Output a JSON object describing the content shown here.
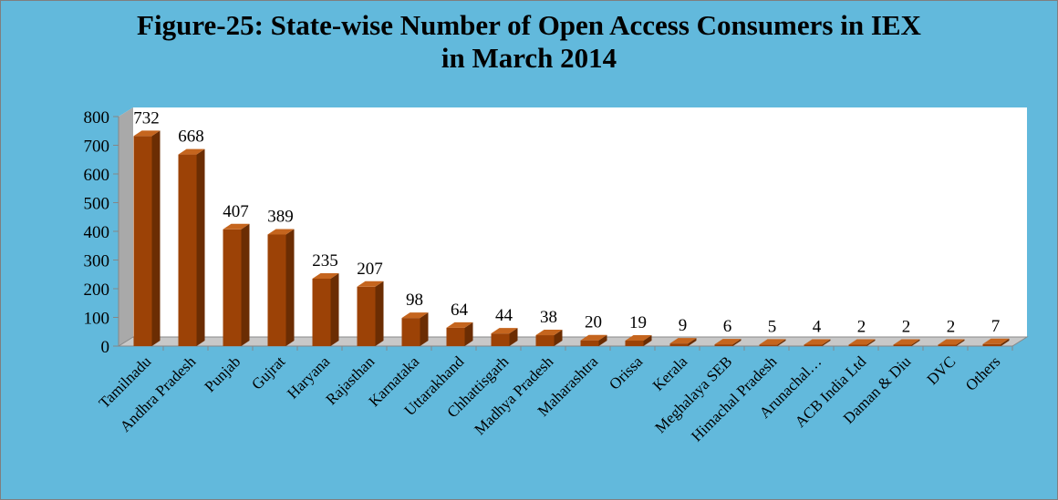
{
  "chart_data": {
    "type": "bar",
    "title_line1": "Figure-25: State-wise Number of Open Access Consumers in IEX",
    "title_line2": "in March 2014",
    "xlabel": "",
    "ylabel": "",
    "ylim": [
      0,
      800
    ],
    "yticks": [
      0,
      100,
      200,
      300,
      400,
      500,
      600,
      700,
      800
    ],
    "categories": [
      "Tamilnadu",
      "Andhra Pradesh",
      "Punjab",
      "Gujrat",
      "Haryana",
      "Rajasthan",
      "Karnataka",
      "Uttarakhand",
      "Chhattisgarh",
      "Madhya Pradesh",
      "Maharashtra",
      "Orissa",
      "Kerala",
      "Meghalaya SEB",
      "Himachal Pradesh",
      "Arunachal…",
      "ACB India Ltd",
      "Daman & Diu",
      "DVC",
      "Others"
    ],
    "values": [
      732,
      668,
      407,
      389,
      235,
      207,
      98,
      64,
      44,
      38,
      20,
      19,
      9,
      6,
      5,
      4,
      2,
      2,
      2,
      7
    ],
    "bar_color": "#9c4206",
    "grid": false,
    "legend": "none"
  },
  "colors": {
    "background": "#62b9dc",
    "plot_area": "#ffffff",
    "bar_front": "#9c4206",
    "bar_side": "#6b2d03",
    "bar_top": "#c5651e"
  }
}
